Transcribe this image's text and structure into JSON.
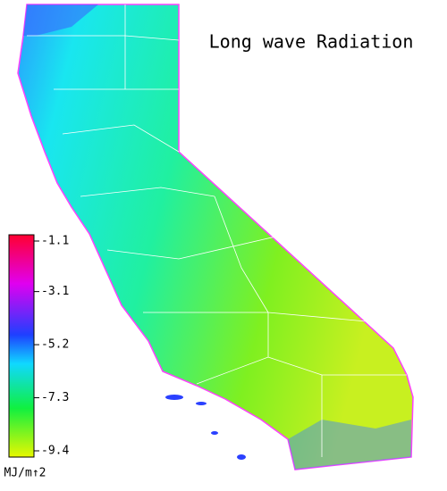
{
  "title": "Long wave Radiation",
  "colorbar": {
    "range": [
      -1.1,
      -9.4
    ],
    "ticks": [
      -1.1,
      -3.1,
      -5.2,
      -7.3,
      -9.4
    ],
    "unit": "MJ/m↑2"
  }
}
